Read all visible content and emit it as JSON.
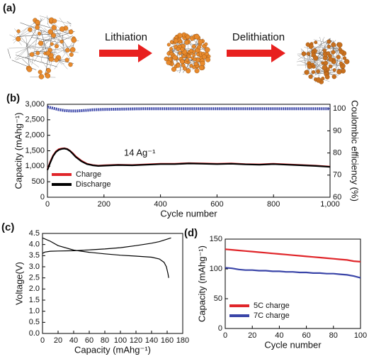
{
  "diagram": {
    "panel": "(a)",
    "steps": [
      "Lithiation",
      "Delithiation"
    ]
  },
  "chart_data": [
    {
      "type": "line",
      "panel": "(b)",
      "xlabel": "Cycle number",
      "ylabel": "Capacity (mAhg⁻¹)",
      "y2label": "Coulombic efficiency (%)",
      "annotation": "14 Ag⁻¹",
      "legend": "lower left",
      "xlim": [
        0,
        1000
      ],
      "xticks": [
        0,
        200,
        400,
        600,
        800,
        {
          "value": 1000,
          "label": "1,000"
        }
      ],
      "ylim": [
        0,
        3000
      ],
      "yticks": [
        0,
        500,
        {
          "value": 1000,
          "label": "1,000"
        },
        {
          "value": 1500,
          "label": "1,500"
        },
        {
          "value": 2000,
          "label": "2,000"
        },
        {
          "value": 2500,
          "label": "2,500"
        },
        {
          "value": 3000,
          "label": "3,000"
        }
      ],
      "y2lim": [
        60,
        102
      ],
      "y2ticks": [
        60,
        70,
        80,
        90,
        100
      ],
      "x": [
        0,
        10,
        20,
        30,
        40,
        50,
        60,
        70,
        80,
        90,
        100,
        120,
        140,
        160,
        180,
        200,
        250,
        300,
        350,
        400,
        450,
        500,
        550,
        600,
        650,
        700,
        750,
        800,
        850,
        900,
        950,
        1000
      ],
      "series": [
        {
          "name": "Charge",
          "color": "#e0262a",
          "values": [
            900,
            1150,
            1350,
            1480,
            1550,
            1570,
            1580,
            1560,
            1500,
            1420,
            1320,
            1180,
            1080,
            1040,
            1020,
            1030,
            1050,
            1040,
            1060,
            1080,
            1080,
            1100,
            1090,
            1080,
            1090,
            1070,
            1060,
            1080,
            1060,
            1040,
            1020,
            990
          ]
        },
        {
          "name": "Discharge",
          "color": "#000000",
          "values": [
            880,
            1120,
            1330,
            1460,
            1530,
            1560,
            1570,
            1550,
            1490,
            1400,
            1300,
            1160,
            1070,
            1030,
            1010,
            1020,
            1040,
            1030,
            1050,
            1070,
            1070,
            1090,
            1080,
            1070,
            1080,
            1060,
            1050,
            1070,
            1050,
            1030,
            1010,
            980
          ]
        },
        {
          "color": "#3a45a8",
          "axis": "y2",
          "values": [
            100.8,
            100.5,
            100.2,
            99.9,
            99.6,
            99.4,
            99.2,
            99.1,
            99.0,
            99.0,
            99.0,
            99.1,
            99.3,
            99.5,
            99.6,
            99.7,
            99.8,
            99.9,
            100,
            100,
            100,
            100,
            100,
            100,
            100,
            100,
            100,
            100,
            100,
            100,
            100,
            100
          ]
        }
      ]
    },
    {
      "type": "line",
      "panel": "(c)",
      "xlabel": "Capacity (mAhg⁻¹)",
      "ylabel": "Voltage(V)",
      "xlim": [
        0,
        180
      ],
      "xticks": [
        0,
        20,
        40,
        60,
        80,
        100,
        120,
        140,
        160,
        180
      ],
      "ylim": [
        0,
        4.5
      ],
      "yticks": [
        {
          "value": 0,
          "label": "0.0"
        },
        0.5,
        {
          "value": 1,
          "label": "1.0"
        },
        1.5,
        {
          "value": 2,
          "label": "2.0"
        },
        2.5,
        {
          "value": 3,
          "label": "3.0"
        },
        3.5,
        {
          "value": 4,
          "label": "4.0"
        },
        4.5
      ],
      "series": [
        {
          "color": "#000000",
          "x": [
            0,
            3,
            10,
            20,
            40,
            60,
            80,
            100,
            120,
            140,
            150,
            160,
            165
          ],
          "values": [
            3.6,
            3.66,
            3.7,
            3.71,
            3.72,
            3.76,
            3.8,
            3.86,
            3.95,
            4.06,
            4.13,
            4.24,
            4.3
          ]
        },
        {
          "color": "#000000",
          "x": [
            0,
            10,
            20,
            40,
            60,
            80,
            100,
            120,
            140,
            150,
            156,
            159,
            161,
            162
          ],
          "values": [
            4.3,
            4.15,
            3.95,
            3.75,
            3.65,
            3.58,
            3.52,
            3.48,
            3.43,
            3.35,
            3.2,
            3.0,
            2.7,
            2.5
          ]
        }
      ]
    },
    {
      "type": "line",
      "panel": "(d)",
      "xlabel": "Cycle number",
      "ylabel": "Capacity (mAhg⁻¹)",
      "legend": "lower left",
      "xlim": [
        0,
        100
      ],
      "xticks": [
        0,
        20,
        40,
        60,
        80,
        100
      ],
      "ylim": [
        0,
        150
      ],
      "yticks": [
        0,
        50,
        100,
        150
      ],
      "x": [
        0,
        5,
        10,
        15,
        20,
        25,
        30,
        35,
        40,
        45,
        50,
        55,
        60,
        65,
        70,
        75,
        80,
        85,
        90,
        95,
        100
      ],
      "series": [
        {
          "name": "5C charge",
          "color": "#e0262a",
          "values": [
            133,
            132,
            131,
            130,
            129,
            128,
            127,
            126,
            125,
            124,
            123,
            122,
            121,
            120,
            119,
            118,
            117,
            116,
            115,
            113,
            112
          ]
        },
        {
          "name": "7C charge",
          "color": "#3a45a8",
          "values": [
            102,
            101,
            99,
            98,
            98,
            97,
            97,
            96,
            96,
            95,
            95,
            94,
            94,
            93,
            93,
            92,
            92,
            91,
            90,
            88,
            85
          ]
        }
      ]
    }
  ]
}
